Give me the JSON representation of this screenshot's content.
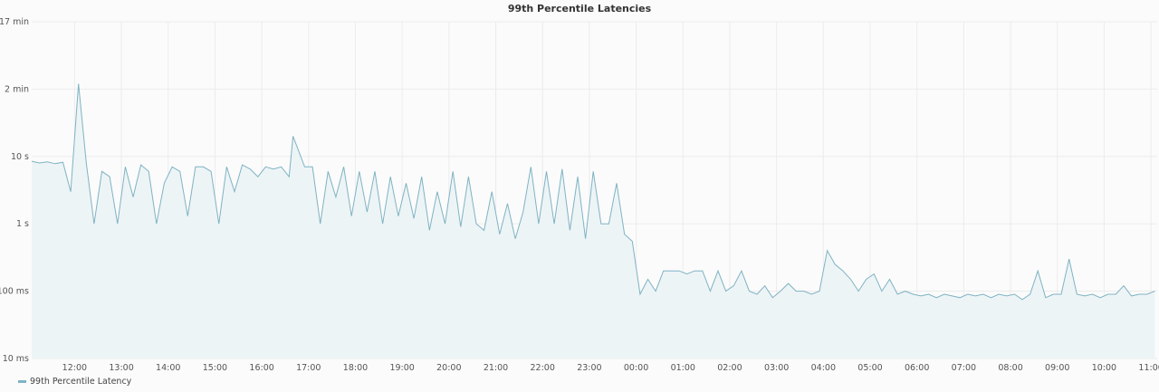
{
  "chart_data": {
    "type": "area",
    "title": "99th Percentile Latencies",
    "ylabel": "",
    "xlabel": "",
    "y_scale": "log",
    "y_unit": "seconds",
    "ylim": [
      0.01,
      1000
    ],
    "y_ticks": [
      {
        "value": 1000,
        "label": "17 min"
      },
      {
        "value": 100,
        "label": "2 min"
      },
      {
        "value": 10,
        "label": "10 s"
      },
      {
        "value": 1,
        "label": "1 s"
      },
      {
        "value": 0.1,
        "label": "100 ms"
      },
      {
        "value": 0.01,
        "label": "10 ms"
      }
    ],
    "xlim": [
      "11:05",
      "11:08"
    ],
    "x_ticks": [
      "12:00",
      "13:00",
      "14:00",
      "15:00",
      "16:00",
      "17:00",
      "18:00",
      "19:00",
      "20:00",
      "21:00",
      "22:00",
      "23:00",
      "00:00",
      "01:00",
      "02:00",
      "03:00",
      "04:00",
      "05:00",
      "06:00",
      "07:00",
      "08:00",
      "09:00",
      "10:00",
      "11:00"
    ],
    "grid": true,
    "legend_position": "bottom-left",
    "colors": {
      "line": "#7fb3c3",
      "fill": "#edf4f6",
      "grid": "#ececec"
    },
    "series": [
      {
        "name": "99th Percentile Latency",
        "points": [
          [
            "11:05",
            8.5
          ],
          [
            "11:15",
            8
          ],
          [
            "11:25",
            8.3
          ],
          [
            "11:35",
            7.8
          ],
          [
            "11:45",
            8.2
          ],
          [
            "11:55",
            3
          ],
          [
            "12:05",
            120
          ],
          [
            "12:15",
            8
          ],
          [
            "12:25",
            1
          ],
          [
            "12:35",
            6
          ],
          [
            "12:45",
            5
          ],
          [
            "12:55",
            1
          ],
          [
            "13:05",
            7
          ],
          [
            "13:15",
            2.5
          ],
          [
            "13:25",
            7.5
          ],
          [
            "13:35",
            6
          ],
          [
            "13:45",
            1
          ],
          [
            "13:55",
            4
          ],
          [
            "14:05",
            7
          ],
          [
            "14:15",
            6
          ],
          [
            "14:25",
            1.3
          ],
          [
            "14:35",
            7
          ],
          [
            "14:45",
            7
          ],
          [
            "14:55",
            6
          ],
          [
            "15:05",
            1
          ],
          [
            "15:15",
            7
          ],
          [
            "15:25",
            3
          ],
          [
            "15:35",
            7.5
          ],
          [
            "15:45",
            6.5
          ],
          [
            "15:55",
            5
          ],
          [
            "16:05",
            7
          ],
          [
            "16:15",
            6.5
          ],
          [
            "16:25",
            7
          ],
          [
            "16:35",
            5
          ],
          [
            "16:40",
            20
          ],
          [
            "16:55",
            7
          ],
          [
            "17:05",
            7
          ],
          [
            "17:15",
            1
          ],
          [
            "17:25",
            6
          ],
          [
            "17:35",
            2.5
          ],
          [
            "17:45",
            7
          ],
          [
            "17:55",
            1.3
          ],
          [
            "18:05",
            6
          ],
          [
            "18:15",
            1.5
          ],
          [
            "18:25",
            6
          ],
          [
            "18:35",
            1
          ],
          [
            "18:45",
            5
          ],
          [
            "18:55",
            1.3
          ],
          [
            "19:05",
            4
          ],
          [
            "19:15",
            1.2
          ],
          [
            "19:25",
            5
          ],
          [
            "19:35",
            0.8
          ],
          [
            "19:45",
            3
          ],
          [
            "19:55",
            1
          ],
          [
            "20:05",
            6
          ],
          [
            "20:15",
            0.9
          ],
          [
            "20:25",
            5
          ],
          [
            "20:35",
            1
          ],
          [
            "20:45",
            0.8
          ],
          [
            "20:55",
            3
          ],
          [
            "21:05",
            0.7
          ],
          [
            "21:15",
            2
          ],
          [
            "21:25",
            0.6
          ],
          [
            "21:35",
            1.5
          ],
          [
            "21:45",
            7
          ],
          [
            "21:55",
            1
          ],
          [
            "22:05",
            6
          ],
          [
            "22:15",
            1
          ],
          [
            "22:25",
            6.5
          ],
          [
            "22:35",
            0.8
          ],
          [
            "22:45",
            5
          ],
          [
            "22:55",
            0.6
          ],
          [
            "23:05",
            6
          ],
          [
            "23:15",
            1
          ],
          [
            "23:25",
            1
          ],
          [
            "23:35",
            4
          ],
          [
            "23:45",
            0.7
          ],
          [
            "23:55",
            0.55
          ],
          [
            "00:05",
            0.09
          ],
          [
            "00:15",
            0.15
          ],
          [
            "00:25",
            0.1
          ],
          [
            "00:35",
            0.2
          ],
          [
            "00:45",
            0.2
          ],
          [
            "00:55",
            0.2
          ],
          [
            "01:05",
            0.18
          ],
          [
            "01:15",
            0.2
          ],
          [
            "01:25",
            0.2
          ],
          [
            "01:35",
            0.1
          ],
          [
            "01:45",
            0.2
          ],
          [
            "01:55",
            0.1
          ],
          [
            "02:05",
            0.12
          ],
          [
            "02:15",
            0.2
          ],
          [
            "02:25",
            0.1
          ],
          [
            "02:35",
            0.09
          ],
          [
            "02:45",
            0.12
          ],
          [
            "02:55",
            0.08
          ],
          [
            "03:05",
            0.1
          ],
          [
            "03:15",
            0.13
          ],
          [
            "03:25",
            0.1
          ],
          [
            "03:35",
            0.1
          ],
          [
            "03:45",
            0.09
          ],
          [
            "03:55",
            0.1
          ],
          [
            "04:05",
            0.4
          ],
          [
            "04:15",
            0.25
          ],
          [
            "04:25",
            0.2
          ],
          [
            "04:35",
            0.15
          ],
          [
            "04:45",
            0.1
          ],
          [
            "04:55",
            0.15
          ],
          [
            "05:05",
            0.18
          ],
          [
            "05:15",
            0.1
          ],
          [
            "05:25",
            0.15
          ],
          [
            "05:35",
            0.09
          ],
          [
            "05:45",
            0.1
          ],
          [
            "05:55",
            0.09
          ],
          [
            "06:05",
            0.085
          ],
          [
            "06:15",
            0.09
          ],
          [
            "06:25",
            0.08
          ],
          [
            "06:35",
            0.09
          ],
          [
            "06:45",
            0.085
          ],
          [
            "06:55",
            0.08
          ],
          [
            "07:05",
            0.09
          ],
          [
            "07:15",
            0.085
          ],
          [
            "07:25",
            0.09
          ],
          [
            "07:35",
            0.08
          ],
          [
            "07:45",
            0.09
          ],
          [
            "07:55",
            0.085
          ],
          [
            "08:05",
            0.09
          ],
          [
            "08:15",
            0.075
          ],
          [
            "08:25",
            0.09
          ],
          [
            "08:35",
            0.2
          ],
          [
            "08:45",
            0.08
          ],
          [
            "08:55",
            0.09
          ],
          [
            "09:05",
            0.09
          ],
          [
            "09:15",
            0.3
          ],
          [
            "09:25",
            0.09
          ],
          [
            "09:35",
            0.085
          ],
          [
            "09:45",
            0.09
          ],
          [
            "09:55",
            0.08
          ],
          [
            "10:05",
            0.09
          ],
          [
            "10:15",
            0.09
          ],
          [
            "10:25",
            0.12
          ],
          [
            "10:35",
            0.085
          ],
          [
            "10:45",
            0.09
          ],
          [
            "10:55",
            0.09
          ],
          [
            "11:05",
            0.1
          ]
        ]
      }
    ]
  }
}
